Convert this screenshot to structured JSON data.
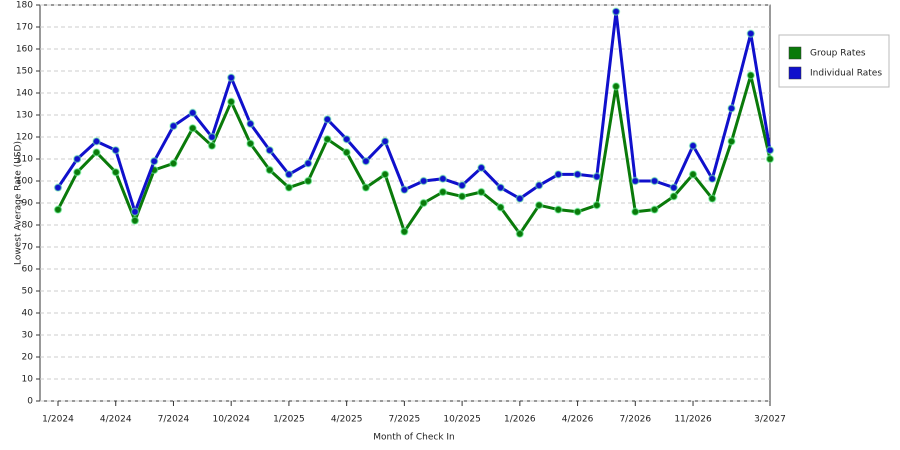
{
  "chart_data": {
    "type": "line",
    "x_label": "Month of Check In",
    "y_label": "Lowest Average Rate (USD)",
    "categories": [
      "1/2024",
      null,
      null,
      "4/2024",
      null,
      null,
      "7/2024",
      null,
      null,
      "10/2024",
      null,
      null,
      "1/2025",
      null,
      null,
      "4/2025",
      null,
      null,
      "7/2025",
      null,
      null,
      "10/2025",
      null,
      null,
      "1/2026",
      null,
      null,
      "4/2026",
      null,
      null,
      "7/2026",
      null,
      null,
      "11/2026",
      null,
      null,
      null,
      "3/2027"
    ],
    "series": [
      {
        "name": "Group Rates",
        "color": "#0a7a0a",
        "values": [
          87,
          104,
          113,
          104,
          82,
          105,
          108,
          124,
          116,
          136,
          117,
          105,
          97,
          100,
          119,
          113,
          97,
          103,
          77,
          90,
          95,
          93,
          95,
          88,
          76,
          89,
          87,
          86,
          89,
          143,
          86,
          87,
          93,
          103,
          92,
          118,
          148,
          110
        ]
      },
      {
        "name": "Individual Rates",
        "color": "#1010cc",
        "values": [
          97,
          110,
          118,
          114,
          86,
          109,
          125,
          131,
          120,
          147,
          126,
          114,
          103,
          108,
          128,
          119,
          109,
          118,
          96,
          100,
          101,
          98,
          106,
          97,
          92,
          98,
          103,
          103,
          102,
          177,
          100,
          100,
          97,
          116,
          101,
          133,
          167,
          114
        ]
      }
    ],
    "ylim": [
      0,
      180
    ],
    "yticks": [
      0,
      10,
      20,
      30,
      40,
      50,
      60,
      70,
      80,
      90,
      100,
      110,
      120,
      130,
      140,
      150,
      160,
      170,
      180
    ],
    "grid": true
  }
}
